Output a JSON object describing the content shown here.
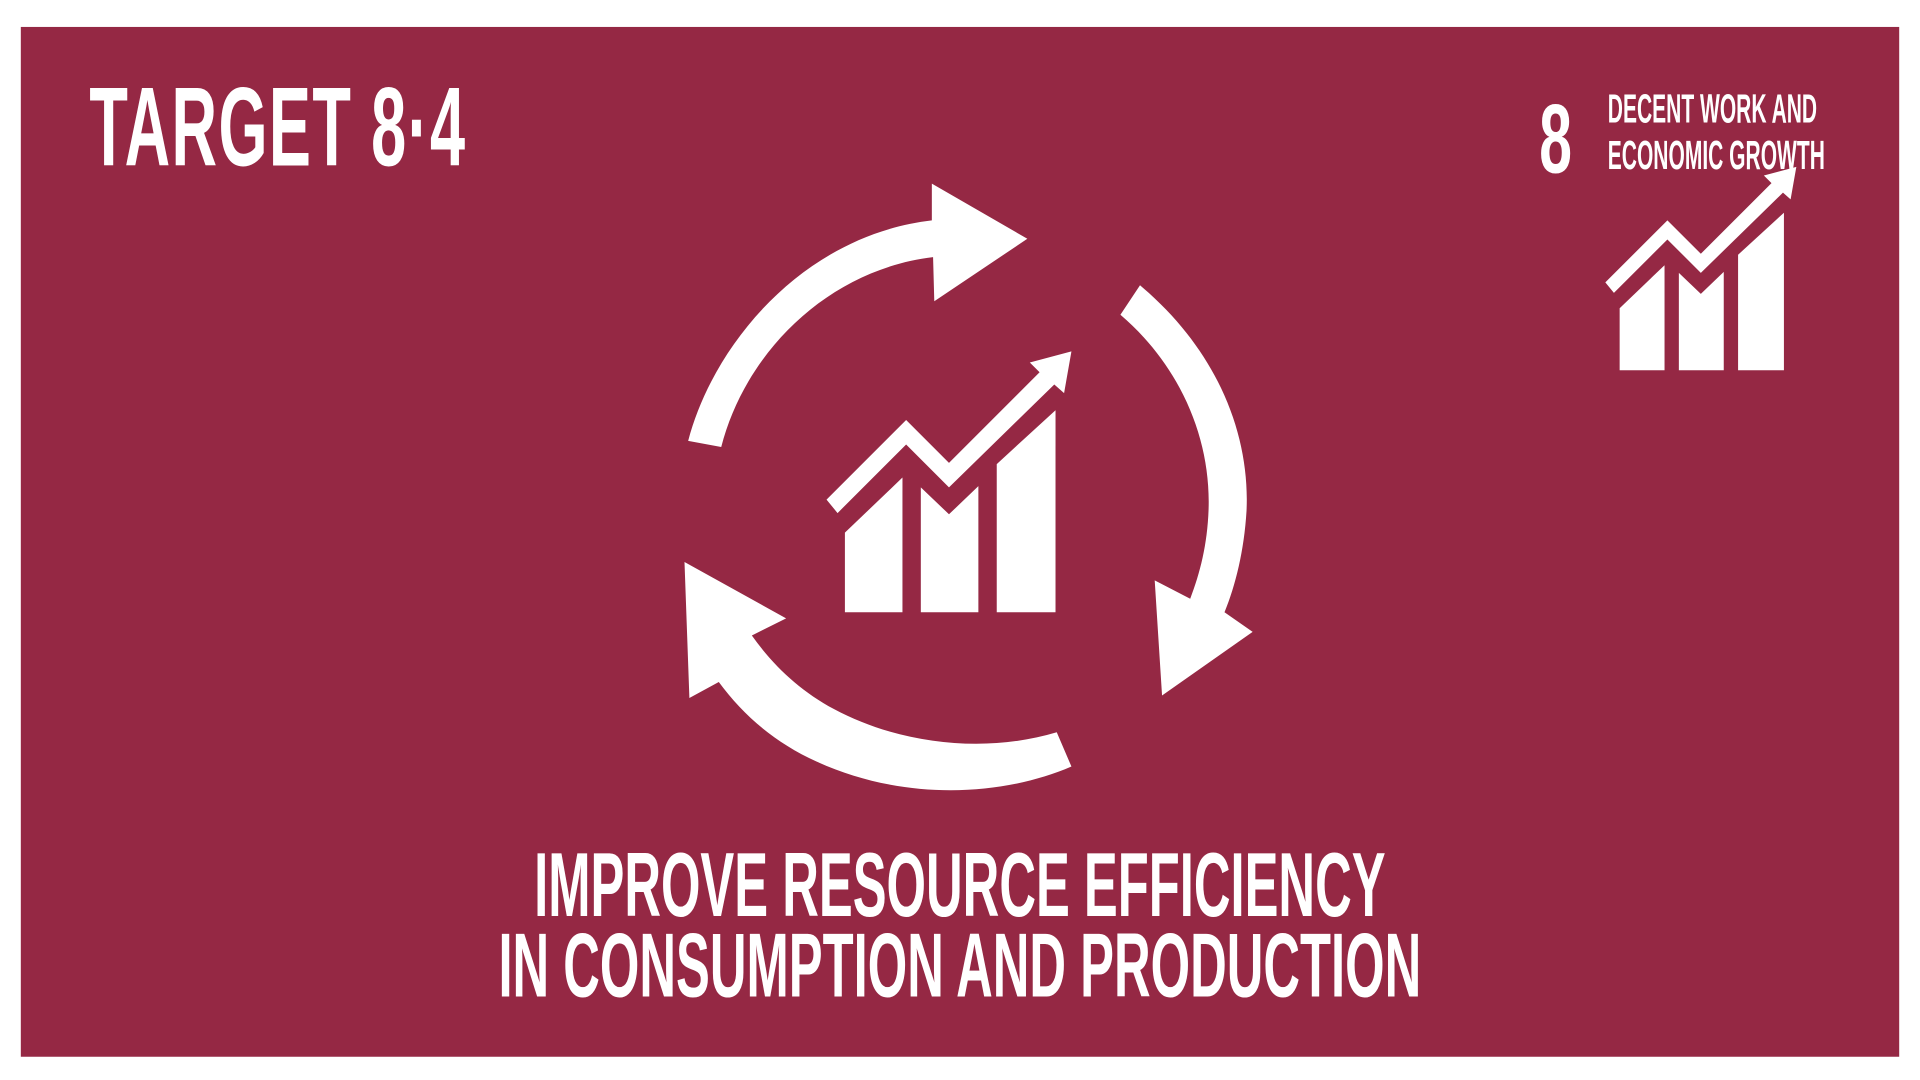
{
  "header": {
    "title": "TARGET  8·4"
  },
  "goal": {
    "number": "8",
    "name_line1": "DECENT WORK AND",
    "name_line2": "ECONOMIC GROWTH"
  },
  "caption": {
    "line1": "IMPROVE RESOURCE EFFICIENCY",
    "line2": "IN CONSUMPTION AND PRODUCTION"
  },
  "colors": {
    "background": "#952844",
    "foreground": "#ffffff"
  },
  "icons": [
    "recycle-arrows-icon",
    "growth-chart-icon"
  ]
}
